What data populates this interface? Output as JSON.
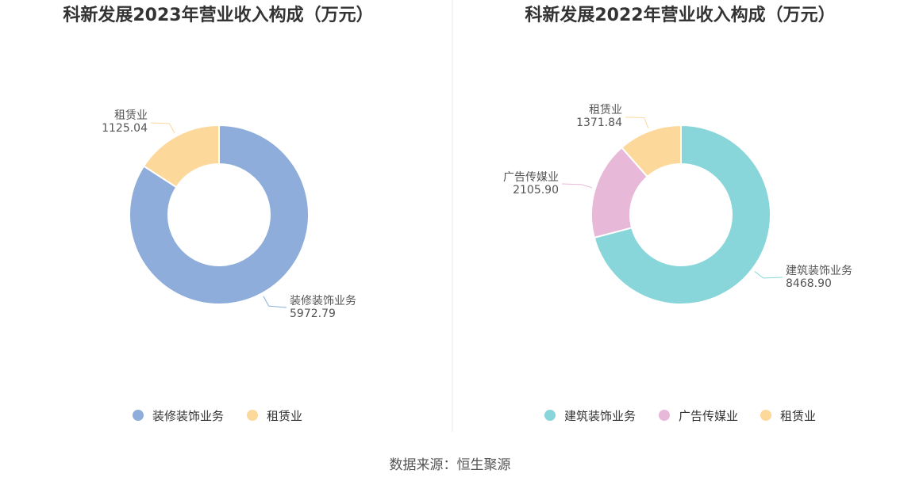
{
  "chart_data": [
    {
      "type": "pie",
      "donut": true,
      "title": "科新发展2023年营业收入构成（万元）",
      "slices": [
        {
          "name": "装修装饰业务",
          "value": 5972.79,
          "label": "5972.79",
          "color": "#8eaddb"
        },
        {
          "name": "租赁业",
          "value": 1125.04,
          "label": "1125.04",
          "color": "#fdd89b"
        }
      ],
      "legend": {
        "position": "bottom",
        "items": [
          "装修装饰业务",
          "租赁业"
        ]
      }
    },
    {
      "type": "pie",
      "donut": true,
      "title": "科新发展2022年营业收入构成（万元）",
      "slices": [
        {
          "name": "建筑装饰业务",
          "value": 8468.9,
          "label": "8468.90",
          "color": "#88d5da"
        },
        {
          "name": "广告传媒业",
          "value": 2105.9,
          "label": "2105.90",
          "color": "#e8b8d8"
        },
        {
          "name": "租赁业",
          "value": 1371.84,
          "label": "1371.84",
          "color": "#fdd89b"
        }
      ],
      "legend": {
        "position": "bottom",
        "items": [
          "建筑装饰业务",
          "广告传媒业",
          "租赁业"
        ]
      }
    }
  ],
  "source": "数据来源：恒生聚源"
}
